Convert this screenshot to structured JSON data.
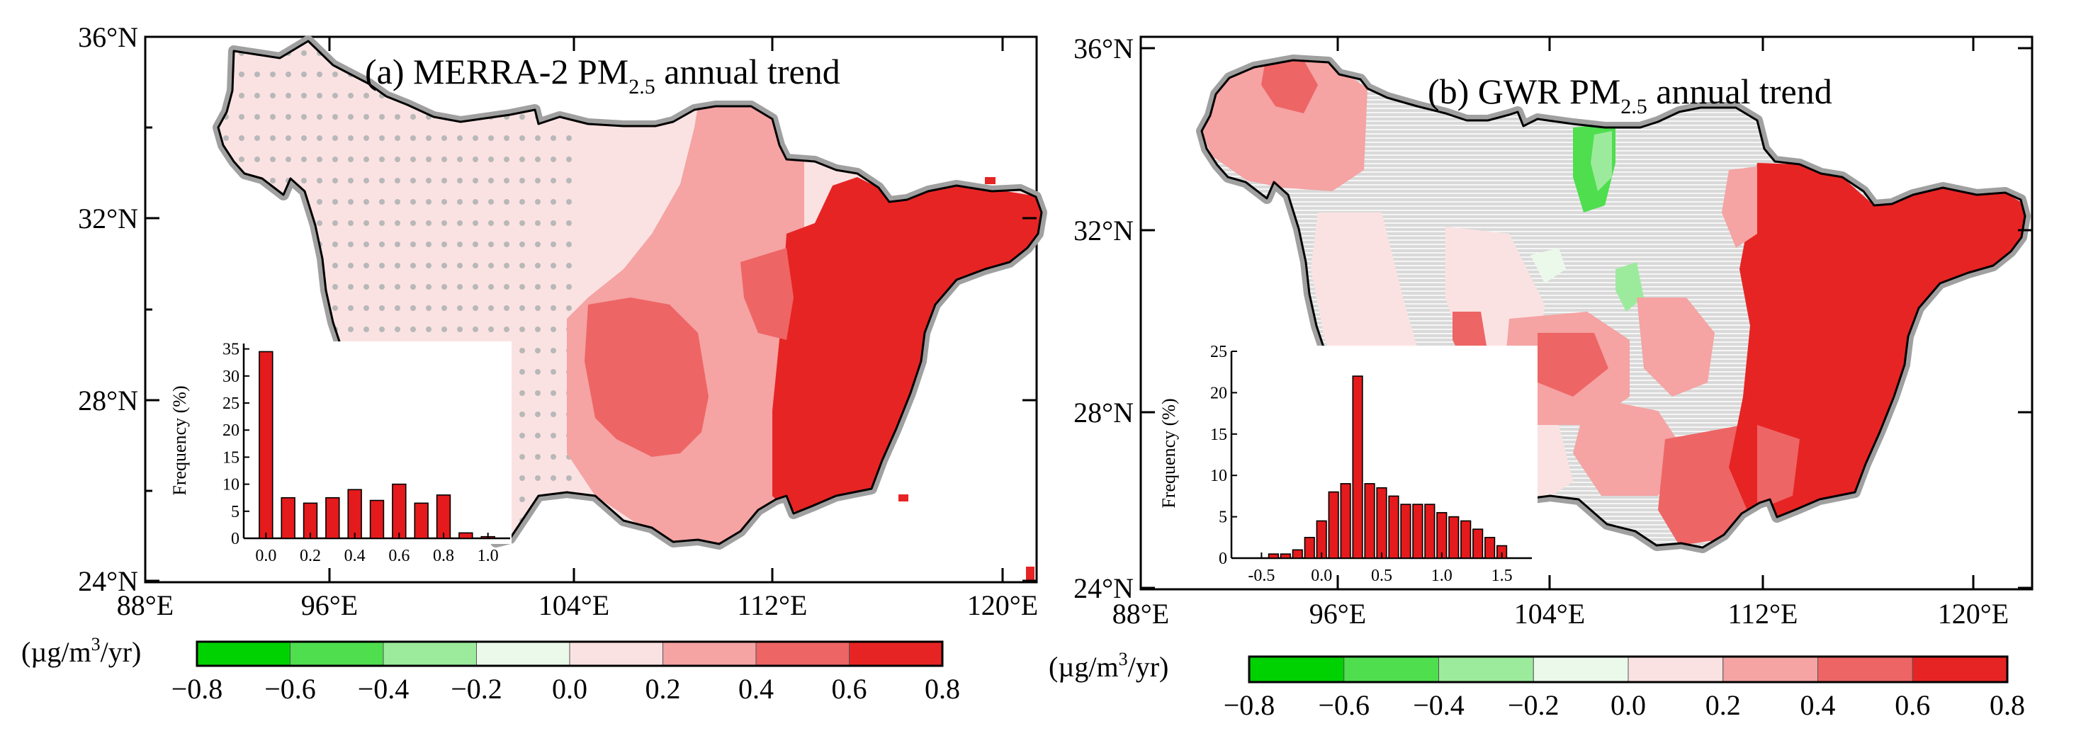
{
  "chart_data": [
    {
      "type": "map-with-histogram",
      "title_prefix": "(a) MERRA-2 PM",
      "title_sub": "2.5",
      "title_suffix": " annual trend",
      "lat_ticks": [
        "36°N",
        "32°N",
        "28°N",
        "24°N"
      ],
      "lon_ticks": [
        "88°E",
        "96°E",
        "104°E",
        "112°E",
        "120°E"
      ],
      "inset": {
        "type": "bar",
        "ylabel": "Frequency (%)",
        "yticks": [
          "0",
          "5",
          "10",
          "15",
          "20",
          "25",
          "30",
          "35"
        ],
        "ylim": [
          0,
          36
        ],
        "xticks": [
          "0.0",
          "0.2",
          "0.4",
          "0.6",
          "0.8",
          "1.0"
        ],
        "xlim": [
          -0.1,
          1.1
        ],
        "bin_centers": [
          0.0,
          0.1,
          0.2,
          0.3,
          0.4,
          0.5,
          0.6,
          0.7,
          0.8,
          0.9,
          1.0
        ],
        "values": [
          34.5,
          7.5,
          6.5,
          7.5,
          9,
          7,
          10,
          6.5,
          8,
          1,
          0.3
        ]
      },
      "colorbar": {
        "unit_prefix": "(µg/m",
        "unit_sup": "3",
        "unit_suffix": "/yr)",
        "ticks": [
          "−0.8",
          "−0.6",
          "−0.4",
          "−0.2",
          "0.0",
          "0.2",
          "0.4",
          "0.6",
          "0.8"
        ],
        "colors": [
          "#00d100",
          "#4ede4e",
          "#9ceb9c",
          "#ebf9eb",
          "#fbe2e2",
          "#f5a3a3",
          "#ee6565",
          "#e72424"
        ]
      }
    },
    {
      "type": "map-with-histogram",
      "title_prefix": "(b) GWR PM",
      "title_sub": "2.5",
      "title_suffix": " annual trend",
      "lat_ticks": [
        "36°N",
        "32°N",
        "28°N",
        "24°N"
      ],
      "lon_ticks": [
        "88°E",
        "96°E",
        "104°E",
        "112°E",
        "120°E"
      ],
      "inset": {
        "type": "bar",
        "ylabel": "Frequency (%)",
        "yticks": [
          "0",
          "5",
          "10",
          "15",
          "20",
          "25"
        ],
        "ylim": [
          0,
          25
        ],
        "xticks": [
          "-0.5",
          "0.0",
          "0.5",
          "1.0",
          "1.5"
        ],
        "xlim": [
          -0.75,
          1.75
        ],
        "bin_centers": [
          -0.4,
          -0.3,
          -0.2,
          -0.1,
          0.0,
          0.1,
          0.2,
          0.3,
          0.4,
          0.5,
          0.6,
          0.7,
          0.8,
          0.9,
          1.0,
          1.1,
          1.2,
          1.3,
          1.4,
          1.5
        ],
        "values": [
          0.5,
          0.5,
          1,
          2.5,
          4.5,
          8,
          9,
          22,
          9,
          8.5,
          7.5,
          6.5,
          6.5,
          6.5,
          5.5,
          5,
          4.5,
          3.5,
          2.5,
          1.5
        ]
      },
      "colorbar": {
        "unit_prefix": "(µg/m",
        "unit_sup": "3",
        "unit_suffix": "/yr)",
        "ticks": [
          "−0.8",
          "−0.6",
          "−0.4",
          "−0.2",
          "0.0",
          "0.2",
          "0.4",
          "0.6",
          "0.8"
        ],
        "colors": [
          "#00d100",
          "#4ede4e",
          "#9ceb9c",
          "#ebf9eb",
          "#fbe2e2",
          "#f5a3a3",
          "#ee6565",
          "#e72424"
        ]
      }
    }
  ]
}
